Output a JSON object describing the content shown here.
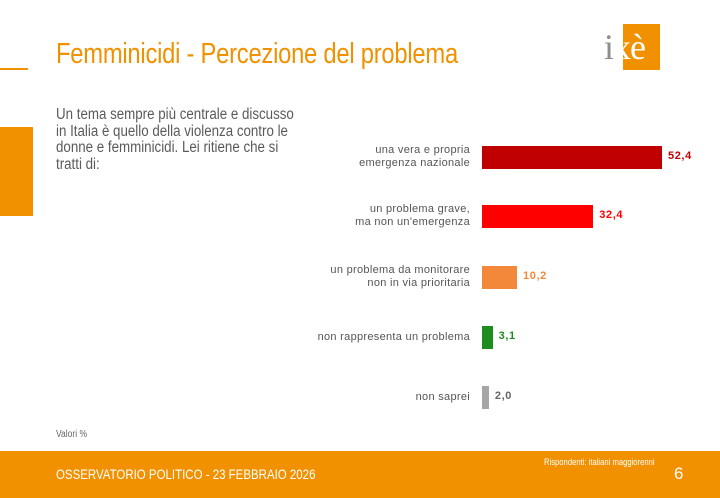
{
  "header": {
    "title": "Femminicidi - Percezione del problema",
    "logo": "ixè"
  },
  "question": "Un tema sempre più centrale e discusso in Italia è quello della violenza contro le donne e femminicidi. Lei ritiene che si tratti di:",
  "note": "Valori %",
  "footer": {
    "left": "OSSERVATORIO POLITICO - 23 FEBBRAIO 2026",
    "respondents": "Rispondenti: italiani maggiorenni",
    "page": "6"
  },
  "colors": {
    "accent": "#f29100"
  },
  "chart_data": {
    "type": "bar",
    "orientation": "horizontal",
    "categories": [
      "una vera e propria\nemergenza nazionale",
      "un problema grave,\nma non un'emergenza",
      "un problema da monitorare\nnon in via prioritaria",
      "non rappresenta un problema",
      "non saprei"
    ],
    "values": [
      52.4,
      32.4,
      10.2,
      3.1,
      2.0
    ],
    "value_labels": [
      "52,4",
      "32,4",
      "10,2",
      "3,1",
      "2,0"
    ],
    "colors": [
      "#c00000",
      "#ff0000",
      "#f4883a",
      "#1e8c1e",
      "#a6a6a6"
    ],
    "label_colors": [
      "#c00000",
      "#ff0000",
      "#f4883a",
      "#1e8c1e",
      "#666666"
    ],
    "xlim": [
      0,
      52.4
    ]
  }
}
